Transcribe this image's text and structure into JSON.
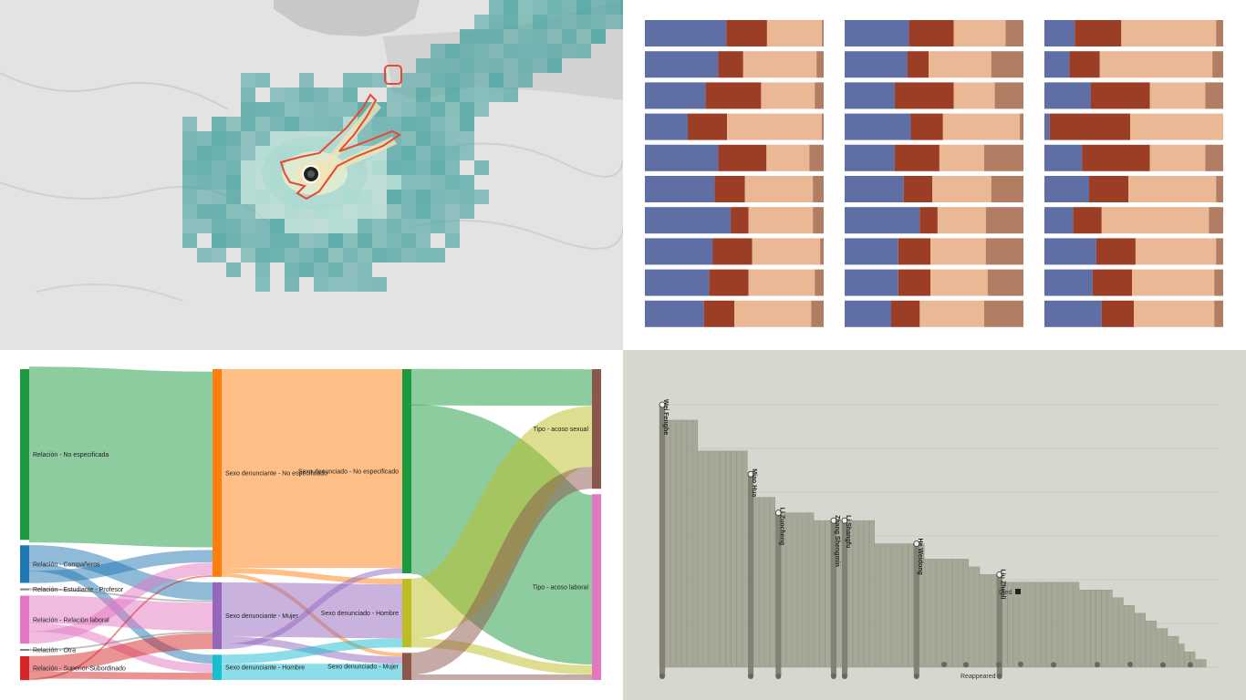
{
  "colors": {
    "map_bg": "#e3e3e3",
    "map_teal": "#4fa6a3",
    "map_teal_light": "#a7d9cf",
    "map_core": "#f3e6b8",
    "map_outline": "#e8492f",
    "bar_blue": "#5f6fa6",
    "bar_red": "#9c3d26",
    "bar_peach": "#ebb896",
    "bar_brown": "#b17e63",
    "step_bg": "#d8d7cf",
    "step_bar": "#a7a898",
    "step_dark": "#818273",
    "sk_green": "#1b9a3f",
    "sk_blue": "#1f77b4",
    "sk_pink": "#e377c2",
    "sk_grey": "#7f7f7f",
    "sk_red": "#d62728",
    "sk_orange": "#ff7f0e",
    "sk_purple": "#9467bd",
    "sk_cyan": "#17becf",
    "sk_olive": "#bcbd22",
    "sk_brown": "#8c564b"
  },
  "chart_data": [
    {
      "type": "map",
      "legend": []
    },
    {
      "type": "bar",
      "stacked": true,
      "orientation": "horizontal",
      "panels": [
        {
          "rows": [
            [
              0.46,
              0.23,
              0.31,
              0.01
            ],
            [
              0.41,
              0.14,
              0.41,
              0.04
            ],
            [
              0.34,
              0.31,
              0.3,
              0.05
            ],
            [
              0.24,
              0.22,
              0.53,
              0.01
            ],
            [
              0.41,
              0.27,
              0.24,
              0.08
            ],
            [
              0.39,
              0.17,
              0.38,
              0.06
            ],
            [
              0.48,
              0.1,
              0.36,
              0.06
            ],
            [
              0.38,
              0.22,
              0.38,
              0.02
            ],
            [
              0.36,
              0.22,
              0.37,
              0.05
            ],
            [
              0.33,
              0.17,
              0.43,
              0.07
            ]
          ]
        },
        {
          "rows": [
            [
              0.36,
              0.25,
              0.29,
              0.1
            ],
            [
              0.35,
              0.12,
              0.35,
              0.18
            ],
            [
              0.28,
              0.33,
              0.23,
              0.16
            ],
            [
              0.37,
              0.18,
              0.43,
              0.02
            ],
            [
              0.28,
              0.25,
              0.25,
              0.22
            ],
            [
              0.33,
              0.16,
              0.33,
              0.18
            ],
            [
              0.42,
              0.1,
              0.27,
              0.21
            ],
            [
              0.3,
              0.18,
              0.31,
              0.21
            ],
            [
              0.3,
              0.18,
              0.32,
              0.2
            ],
            [
              0.26,
              0.16,
              0.36,
              0.22
            ]
          ]
        },
        {
          "rows": [
            [
              0.17,
              0.26,
              0.53,
              0.04
            ],
            [
              0.14,
              0.17,
              0.63,
              0.06
            ],
            [
              0.26,
              0.33,
              0.31,
              0.1
            ],
            [
              0.03,
              0.45,
              0.52,
              0.0
            ],
            [
              0.21,
              0.38,
              0.31,
              0.1
            ],
            [
              0.25,
              0.22,
              0.49,
              0.04
            ],
            [
              0.16,
              0.16,
              0.6,
              0.08
            ],
            [
              0.29,
              0.22,
              0.45,
              0.04
            ],
            [
              0.27,
              0.22,
              0.46,
              0.05
            ],
            [
              0.32,
              0.18,
              0.45,
              0.05
            ]
          ]
        }
      ]
    },
    {
      "type": "sankey",
      "nodes": [
        {
          "id": "r_nes",
          "label": "Relación - No especificada",
          "col": 0,
          "value": 100,
          "color": "sk_green"
        },
        {
          "id": "r_comp",
          "label": "Relación - Compañeros",
          "col": 0,
          "value": 22,
          "color": "sk_blue"
        },
        {
          "id": "r_est",
          "label": "Relación - Estudiante - Profesor",
          "col": 0,
          "value": 1,
          "color": "sk_grey"
        },
        {
          "id": "r_lab",
          "label": "Relación - Relación laboral",
          "col": 0,
          "value": 28,
          "color": "sk_pink"
        },
        {
          "id": "r_otra",
          "label": "Relación - Otra",
          "col": 0,
          "value": 1,
          "color": "sk_grey"
        },
        {
          "id": "r_sup",
          "label": "Relación - Superior-Subordinado",
          "col": 0,
          "value": 14,
          "color": "sk_red"
        },
        {
          "id": "sd_ne",
          "label": "Sexo denunciante - No especificado",
          "col": 1,
          "value": 115,
          "color": "sk_orange"
        },
        {
          "id": "sd_muj",
          "label": "Sexo denunciante - Mujer",
          "col": 1,
          "value": 37,
          "color": "sk_purple"
        },
        {
          "id": "sd_hom",
          "label": "Sexo denunciante - Hombre",
          "col": 1,
          "value": 14,
          "color": "sk_cyan"
        },
        {
          "id": "sn_ne",
          "label": "Sexo denunciado - No especificado",
          "col": 2,
          "value": 113,
          "color": "sk_green"
        },
        {
          "id": "sn_hom",
          "label": "Sexo denunciado - Hombre",
          "col": 2,
          "value": 38,
          "color": "sk_olive"
        },
        {
          "id": "sn_muj",
          "label": "Sexo denunciado - Mujer",
          "col": 2,
          "value": 15,
          "color": "sk_brown"
        },
        {
          "id": "t_sex",
          "label": "Tipo - acoso sexual",
          "col": 3,
          "value": 65,
          "color": "sk_brown"
        },
        {
          "id": "t_lab",
          "label": "Tipo - acoso laboral",
          "col": 3,
          "value": 101,
          "color": "sk_pink"
        }
      ],
      "links": [
        {
          "source": "r_nes",
          "target": "sd_ne",
          "value": 100
        },
        {
          "source": "r_comp",
          "target": "sd_muj",
          "value": 10
        },
        {
          "source": "r_comp",
          "target": "sd_hom",
          "value": 5
        },
        {
          "source": "r_comp",
          "target": "sd_ne",
          "value": 7
        },
        {
          "source": "r_est",
          "target": "sd_muj",
          "value": 1
        },
        {
          "source": "r_lab",
          "target": "sd_muj",
          "value": 16
        },
        {
          "source": "r_lab",
          "target": "sd_hom",
          "value": 5
        },
        {
          "source": "r_lab",
          "target": "sd_ne",
          "value": 7
        },
        {
          "source": "r_otra",
          "target": "sd_muj",
          "value": 1
        },
        {
          "source": "r_sup",
          "target": "sd_muj",
          "value": 9
        },
        {
          "source": "r_sup",
          "target": "sd_hom",
          "value": 4
        },
        {
          "source": "r_sup",
          "target": "sd_ne",
          "value": 1
        },
        {
          "source": "sd_ne",
          "target": "sn_ne",
          "value": 110
        },
        {
          "source": "sd_ne",
          "target": "sn_hom",
          "value": 3
        },
        {
          "source": "sd_ne",
          "target": "sn_muj",
          "value": 2
        },
        {
          "source": "sd_muj",
          "target": "sn_hom",
          "value": 30
        },
        {
          "source": "sd_muj",
          "target": "sn_muj",
          "value": 4
        },
        {
          "source": "sd_muj",
          "target": "sn_ne",
          "value": 3
        },
        {
          "source": "sd_hom",
          "target": "sn_hom",
          "value": 5
        },
        {
          "source": "sd_hom",
          "target": "sn_muj",
          "value": 9
        },
        {
          "source": "sn_ne",
          "target": "t_sex",
          "value": 20
        },
        {
          "source": "sn_ne",
          "target": "t_lab",
          "value": 93
        },
        {
          "source": "sn_hom",
          "target": "t_sex",
          "value": 33
        },
        {
          "source": "sn_hom",
          "target": "t_lab",
          "value": 5
        },
        {
          "source": "sn_muj",
          "target": "t_sex",
          "value": 12
        },
        {
          "source": "sn_muj",
          "target": "t_lab",
          "value": 3
        }
      ]
    },
    {
      "type": "bar",
      "subtype": "step-timeline",
      "heights": [
        34,
        32,
        32,
        32,
        32,
        32,
        32,
        28,
        28,
        28,
        28,
        28,
        28,
        28,
        28,
        28,
        25,
        22,
        22,
        22,
        22,
        20,
        20,
        20,
        20,
        20,
        20,
        20,
        19,
        19,
        19,
        19,
        19,
        19,
        19,
        19,
        19,
        19,
        19,
        16,
        16,
        16,
        16,
        16,
        16,
        16,
        16,
        16,
        14,
        14,
        14,
        14,
        14,
        14,
        14,
        14,
        13,
        13,
        12,
        12,
        12,
        12,
        11,
        11,
        11,
        11,
        11,
        11,
        11,
        11,
        11,
        11,
        11,
        11,
        11,
        11,
        10,
        10,
        10,
        10,
        10,
        10,
        9,
        9,
        8,
        8,
        7,
        7,
        6,
        6,
        5,
        5,
        4,
        4,
        3,
        2,
        2,
        1,
        1
      ],
      "people": [
        {
          "name": "Wei Fenghe",
          "index": 0
        },
        {
          "name": "Miao Hua",
          "index": 16
        },
        {
          "name": "Li Zuocheng",
          "index": 21
        },
        {
          "name": "Zhang Shengmin",
          "index": 31
        },
        {
          "name": "Li Shangfu",
          "index": 33
        },
        {
          "name": "He Weidong",
          "index": 46
        },
        {
          "name": "Liu Zhenli",
          "index": 61
        }
      ],
      "annotations": [
        "Died",
        "Reappeared"
      ]
    }
  ]
}
